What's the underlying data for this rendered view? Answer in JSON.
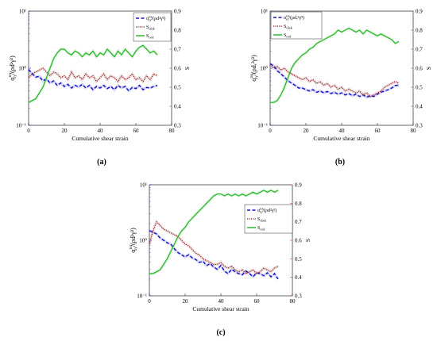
{
  "figure": {
    "panels": [
      {
        "id": "a",
        "label": "(a)",
        "legend_position": "top-right"
      },
      {
        "id": "b",
        "label": "(b)",
        "legend_position": "top-left"
      },
      {
        "id": "c",
        "label": "(c)",
        "legend_position": "right-middle"
      }
    ]
  },
  "colors": {
    "sigma": "#1010c8",
    "sdisk": "#8b1a1a",
    "srod": "#22b422",
    "left_axis": "#1010c8",
    "right_axis": "#cc2222"
  },
  "chart_data": [
    {
      "type": "line",
      "panel": "a",
      "xlabel": "Cumulative shear strain",
      "ylabel_left": "σxytot/(ρd²γ̇²)",
      "ylabel_right": "S",
      "xlim": [
        0,
        80
      ],
      "xticks": [
        0,
        20,
        40,
        60,
        80
      ],
      "ylim_left": [
        0.1,
        10
      ],
      "yticks_left": [
        "10⁻¹",
        "10⁰",
        "10¹"
      ],
      "yscale_left": "log",
      "ylim_right": [
        0.3,
        0.9
      ],
      "yticks_right": [
        0.3,
        0.4,
        0.5,
        0.6,
        0.7,
        0.8,
        0.9
      ],
      "series": [
        {
          "name": "σxytot/(ρd²γ̇²)",
          "axis": "left",
          "style": "dashed",
          "x": [
            0,
            2,
            4,
            6,
            8,
            10,
            12,
            14,
            16,
            18,
            20,
            22,
            24,
            26,
            28,
            30,
            32,
            34,
            36,
            38,
            40,
            42,
            44,
            46,
            48,
            50,
            52,
            54,
            56,
            58,
            60,
            62,
            64,
            66,
            68,
            70,
            72
          ],
          "values": [
            0.95,
            0.8,
            0.7,
            0.72,
            0.6,
            0.65,
            0.55,
            0.6,
            0.5,
            0.55,
            0.48,
            0.52,
            0.45,
            0.5,
            0.47,
            0.52,
            0.45,
            0.5,
            0.42,
            0.48,
            0.45,
            0.5,
            0.44,
            0.48,
            0.42,
            0.5,
            0.45,
            0.48,
            0.4,
            0.46,
            0.44,
            0.5,
            0.42,
            0.46,
            0.45,
            0.48,
            0.5
          ]
        },
        {
          "name": "Sdisk",
          "axis": "right",
          "style": "dotted",
          "x": [
            0,
            2,
            4,
            6,
            8,
            10,
            12,
            14,
            16,
            18,
            20,
            22,
            24,
            26,
            28,
            30,
            32,
            34,
            36,
            38,
            40,
            42,
            44,
            46,
            48,
            50,
            52,
            54,
            56,
            58,
            60,
            62,
            64,
            66,
            68,
            70,
            72
          ],
          "values": [
            0.55,
            0.57,
            0.58,
            0.59,
            0.6,
            0.58,
            0.56,
            0.58,
            0.57,
            0.55,
            0.56,
            0.54,
            0.58,
            0.55,
            0.56,
            0.54,
            0.57,
            0.55,
            0.56,
            0.53,
            0.55,
            0.57,
            0.54,
            0.56,
            0.55,
            0.53,
            0.56,
            0.54,
            0.55,
            0.57,
            0.54,
            0.55,
            0.53,
            0.56,
            0.54,
            0.57,
            0.56
          ]
        },
        {
          "name": "Srod",
          "axis": "right",
          "style": "solid",
          "x": [
            0,
            2,
            4,
            6,
            8,
            10,
            12,
            14,
            16,
            18,
            20,
            22,
            24,
            26,
            28,
            30,
            32,
            34,
            36,
            38,
            40,
            42,
            44,
            46,
            48,
            50,
            52,
            54,
            56,
            58,
            60,
            62,
            64,
            66,
            68,
            70,
            72
          ],
          "values": [
            0.42,
            0.43,
            0.44,
            0.47,
            0.5,
            0.55,
            0.6,
            0.65,
            0.68,
            0.7,
            0.7,
            0.68,
            0.67,
            0.69,
            0.68,
            0.66,
            0.68,
            0.67,
            0.69,
            0.66,
            0.68,
            0.67,
            0.7,
            0.68,
            0.66,
            0.69,
            0.67,
            0.7,
            0.68,
            0.66,
            0.69,
            0.71,
            0.72,
            0.7,
            0.68,
            0.69,
            0.67
          ]
        }
      ]
    },
    {
      "type": "line",
      "panel": "b",
      "xlabel": "Cumulative shear strain",
      "ylabel_left": "σxytot/(ρdₑ²γ̇²)",
      "ylabel_right": "S",
      "xlim": [
        0,
        80
      ],
      "xticks": [
        0,
        20,
        40,
        60,
        80
      ],
      "ylim_left": [
        0.1,
        10
      ],
      "yticks_left": [
        "10⁻¹",
        "10⁰",
        "10¹"
      ],
      "yscale_left": "log",
      "ylim_right": [
        0.3,
        0.9
      ],
      "yticks_right": [
        0.3,
        0.4,
        0.5,
        0.6,
        0.7,
        0.8,
        0.9
      ],
      "series": [
        {
          "name": "σxytot/(ρdₑ²γ̇²)",
          "axis": "left",
          "style": "dashed",
          "x": [
            0,
            2,
            4,
            6,
            8,
            10,
            12,
            14,
            16,
            18,
            20,
            22,
            24,
            26,
            28,
            30,
            32,
            34,
            36,
            38,
            40,
            42,
            44,
            46,
            48,
            50,
            52,
            54,
            56,
            58,
            60,
            62,
            64,
            66,
            68,
            70,
            72
          ],
          "values": [
            1.2,
            1.1,
            0.9,
            0.8,
            0.7,
            0.6,
            0.55,
            0.5,
            0.45,
            0.45,
            0.42,
            0.4,
            0.42,
            0.38,
            0.4,
            0.37,
            0.39,
            0.36,
            0.38,
            0.35,
            0.37,
            0.34,
            0.36,
            0.33,
            0.35,
            0.32,
            0.34,
            0.31,
            0.33,
            0.32,
            0.35,
            0.38,
            0.4,
            0.42,
            0.45,
            0.5,
            0.5
          ]
        },
        {
          "name": "Sdisk",
          "axis": "right",
          "style": "dotted",
          "x": [
            0,
            2,
            4,
            6,
            8,
            10,
            12,
            14,
            16,
            18,
            20,
            22,
            24,
            26,
            28,
            30,
            32,
            34,
            36,
            38,
            40,
            42,
            44,
            46,
            48,
            50,
            52,
            54,
            56,
            58,
            60,
            62,
            64,
            66,
            68,
            70,
            72
          ],
          "values": [
            0.62,
            0.6,
            0.61,
            0.59,
            0.6,
            0.58,
            0.57,
            0.56,
            0.55,
            0.54,
            0.55,
            0.53,
            0.54,
            0.52,
            0.53,
            0.51,
            0.52,
            0.5,
            0.51,
            0.49,
            0.5,
            0.48,
            0.49,
            0.48,
            0.47,
            0.48,
            0.46,
            0.47,
            0.45,
            0.46,
            0.47,
            0.48,
            0.5,
            0.51,
            0.52,
            0.53,
            0.52
          ]
        },
        {
          "name": "Srod",
          "axis": "right",
          "style": "solid",
          "x": [
            0,
            2,
            4,
            6,
            8,
            10,
            12,
            14,
            16,
            18,
            20,
            22,
            24,
            26,
            28,
            30,
            32,
            34,
            36,
            38,
            40,
            42,
            44,
            46,
            48,
            50,
            52,
            54,
            56,
            58,
            60,
            62,
            64,
            66,
            68,
            70,
            72
          ],
          "values": [
            0.42,
            0.42,
            0.43,
            0.46,
            0.5,
            0.55,
            0.6,
            0.63,
            0.65,
            0.67,
            0.68,
            0.7,
            0.71,
            0.73,
            0.74,
            0.75,
            0.76,
            0.77,
            0.78,
            0.8,
            0.79,
            0.8,
            0.81,
            0.8,
            0.79,
            0.8,
            0.78,
            0.8,
            0.79,
            0.78,
            0.77,
            0.78,
            0.77,
            0.76,
            0.75,
            0.73,
            0.74
          ]
        }
      ]
    },
    {
      "type": "line",
      "panel": "c",
      "xlabel": "Cumulative shear strain",
      "ylabel_left": "σxytot/(ρd²γ̇²)",
      "ylabel_right": "S",
      "xlim": [
        0,
        80
      ],
      "xticks": [
        0,
        20,
        40,
        60,
        80
      ],
      "ylim_left": [
        0.1,
        10
      ],
      "yticks_left": [
        "10⁻¹",
        "10⁰",
        "10¹"
      ],
      "yscale_left": "log",
      "ylim_right": [
        0.3,
        0.9
      ],
      "yticks_right": [
        0.3,
        0.4,
        0.5,
        0.6,
        0.7,
        0.8,
        0.9
      ],
      "series": [
        {
          "name": "σxytot/(ρd²γ̇²)",
          "axis": "left",
          "style": "dashed",
          "x": [
            0,
            2,
            4,
            6,
            8,
            10,
            12,
            14,
            16,
            18,
            20,
            22,
            24,
            26,
            28,
            30,
            32,
            34,
            36,
            38,
            40,
            42,
            44,
            46,
            48,
            50,
            52,
            54,
            56,
            58,
            60,
            62,
            64,
            66,
            68,
            70,
            72
          ],
          "values": [
            1.5,
            1.4,
            1.3,
            1.1,
            1.0,
            0.9,
            0.85,
            0.7,
            0.6,
            0.55,
            0.5,
            0.55,
            0.48,
            0.45,
            0.4,
            0.42,
            0.35,
            0.38,
            0.33,
            0.3,
            0.35,
            0.28,
            0.25,
            0.3,
            0.27,
            0.25,
            0.24,
            0.28,
            0.25,
            0.22,
            0.26,
            0.25,
            0.23,
            0.26,
            0.22,
            0.25,
            0.2
          ]
        },
        {
          "name": "Sdisk",
          "axis": "right",
          "style": "dotted",
          "x": [
            0,
            2,
            4,
            6,
            8,
            10,
            12,
            14,
            16,
            18,
            20,
            22,
            24,
            26,
            28,
            30,
            32,
            34,
            36,
            38,
            40,
            42,
            44,
            46,
            48,
            50,
            52,
            54,
            56,
            58,
            60,
            62,
            64,
            66,
            68,
            70,
            72
          ],
          "values": [
            0.58,
            0.65,
            0.7,
            0.68,
            0.66,
            0.65,
            0.64,
            0.63,
            0.62,
            0.6,
            0.58,
            0.57,
            0.55,
            0.53,
            0.52,
            0.5,
            0.49,
            0.48,
            0.47,
            0.47,
            0.48,
            0.46,
            0.45,
            0.46,
            0.44,
            0.43,
            0.44,
            0.42,
            0.43,
            0.44,
            0.42,
            0.43,
            0.45,
            0.44,
            0.43,
            0.45,
            0.46
          ]
        },
        {
          "name": "Srod",
          "axis": "right",
          "style": "solid",
          "x": [
            0,
            2,
            4,
            6,
            8,
            10,
            12,
            14,
            16,
            18,
            20,
            22,
            24,
            26,
            28,
            30,
            32,
            34,
            36,
            38,
            40,
            42,
            44,
            46,
            48,
            50,
            52,
            54,
            56,
            58,
            60,
            62,
            64,
            66,
            68,
            70,
            72
          ],
          "values": [
            0.42,
            0.42,
            0.43,
            0.44,
            0.47,
            0.5,
            0.54,
            0.58,
            0.62,
            0.65,
            0.67,
            0.7,
            0.72,
            0.74,
            0.76,
            0.78,
            0.8,
            0.82,
            0.84,
            0.85,
            0.85,
            0.84,
            0.85,
            0.84,
            0.85,
            0.84,
            0.85,
            0.84,
            0.85,
            0.86,
            0.85,
            0.86,
            0.87,
            0.86,
            0.87,
            0.86,
            0.87
          ]
        }
      ]
    }
  ]
}
